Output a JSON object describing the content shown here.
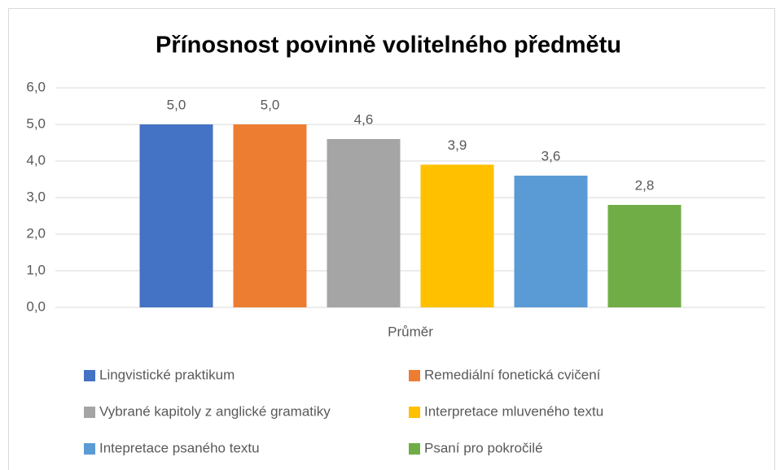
{
  "chart_data": {
    "type": "bar",
    "title": "Přínosnost povinně volitelného předmětu",
    "categories": [
      "Průměr"
    ],
    "series": [
      {
        "name": "Lingvistické praktikum",
        "color": "#4472c4",
        "values": [
          5.0
        ],
        "value_labels": [
          "5,0"
        ]
      },
      {
        "name": "Remediální fonetická cvičení",
        "color": "#ed7d31",
        "values": [
          5.0
        ],
        "value_labels": [
          "5,0"
        ]
      },
      {
        "name": "Vybrané kapitoly z anglické gramatiky",
        "color": "#a5a5a5",
        "values": [
          4.6
        ],
        "value_labels": [
          "4,6"
        ]
      },
      {
        "name": "Interpretace mluveného textu",
        "color": "#ffc000",
        "values": [
          3.9
        ],
        "value_labels": [
          "3,9"
        ]
      },
      {
        "name": "Intepretace psaného textu",
        "color": "#5b9bd5",
        "values": [
          3.6
        ],
        "value_labels": [
          "3,6"
        ]
      },
      {
        "name": "Psaní pro pokročilé",
        "color": "#70ad47",
        "values": [
          2.8
        ],
        "value_labels": [
          "2,8"
        ]
      }
    ],
    "ylim": [
      0,
      6
    ],
    "yticks": [
      {
        "value": 0,
        "label": "0,0"
      },
      {
        "value": 1,
        "label": "1,0"
      },
      {
        "value": 2,
        "label": "2,0"
      },
      {
        "value": 3,
        "label": "3,0"
      },
      {
        "value": 4,
        "label": "4,0"
      },
      {
        "value": 5,
        "label": "5,0"
      },
      {
        "value": 6,
        "label": "6,0"
      }
    ],
    "grid": true,
    "legend": "bottom"
  }
}
